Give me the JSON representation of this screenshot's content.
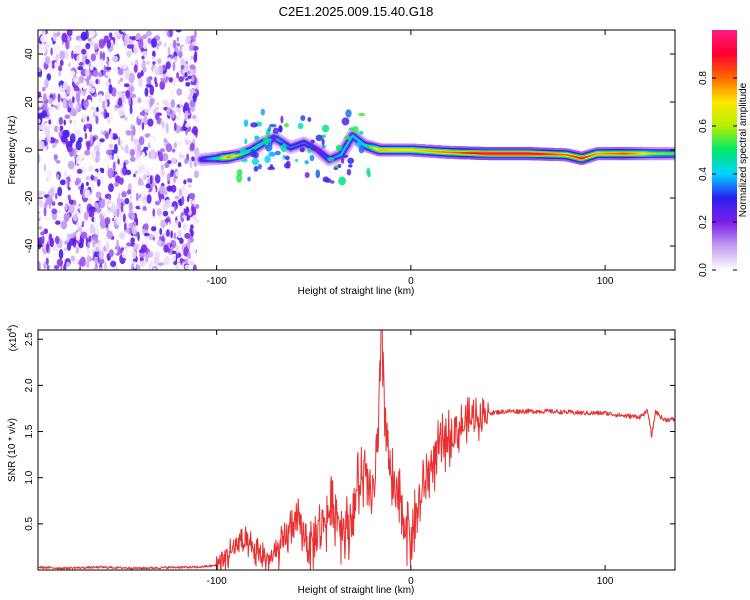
{
  "title": "C2E1.2025.009.15.40.G18",
  "chart_data": [
    {
      "type": "heatmap",
      "xlabel": "Height of straight line (km)",
      "ylabel": "Frequency (Hz)",
      "xlim": [
        -192,
        136
      ],
      "ylim": [
        -50,
        50
      ],
      "xticks": [
        -100,
        0,
        100
      ],
      "yticks": [
        -40,
        -20,
        0,
        20,
        40
      ],
      "grid": false,
      "noise_region_x": [
        -192,
        -110
      ],
      "ridge": [
        {
          "x": -108,
          "f": -4,
          "amp": 0.3
        },
        {
          "x": -100,
          "f": -3.5,
          "amp": 0.45
        },
        {
          "x": -94,
          "f": -3,
          "amp": 0.8
        },
        {
          "x": -88,
          "f": -2,
          "amp": 0.55
        },
        {
          "x": -82,
          "f": 0,
          "amp": 0.5
        },
        {
          "x": -76,
          "f": 3,
          "amp": 0.45
        },
        {
          "x": -70,
          "f": 5,
          "amp": 0.4
        },
        {
          "x": -62,
          "f": 1,
          "amp": 0.35
        },
        {
          "x": -55,
          "f": 3,
          "amp": 0.35
        },
        {
          "x": -48,
          "f": 0,
          "amp": 0.3
        },
        {
          "x": -42,
          "f": -4,
          "amp": 0.35
        },
        {
          "x": -36,
          "f": -2,
          "amp": 0.4
        },
        {
          "x": -30,
          "f": 6,
          "amp": 0.4
        },
        {
          "x": -24,
          "f": 2,
          "amp": 0.45
        },
        {
          "x": -16,
          "f": 0,
          "amp": 0.75
        },
        {
          "x": -8,
          "f": 0,
          "amp": 0.7
        },
        {
          "x": 0,
          "f": 0,
          "amp": 0.7
        },
        {
          "x": 20,
          "f": -1,
          "amp": 0.8
        },
        {
          "x": 40,
          "f": -1.5,
          "amp": 0.95
        },
        {
          "x": 60,
          "f": -1.5,
          "amp": 0.95
        },
        {
          "x": 80,
          "f": -2,
          "amp": 0.8
        },
        {
          "x": 88,
          "f": -3.5,
          "amp": 0.9
        },
        {
          "x": 96,
          "f": -1.5,
          "amp": 0.75
        },
        {
          "x": 110,
          "f": -1.5,
          "amp": 0.85
        },
        {
          "x": 125,
          "f": -1.5,
          "amp": 0.6
        },
        {
          "x": 136,
          "f": -1.5,
          "amp": 0.55
        }
      ],
      "colorbar": {
        "label": "Normalized spectral amplitude",
        "range": [
          0,
          1
        ],
        "ticks": [
          "0.0",
          "0.2",
          "0.4",
          "0.6",
          "0.8"
        ],
        "colors": [
          "#ffffff",
          "#c49cf2",
          "#7a1fe8",
          "#2a1ff0",
          "#00d4ff",
          "#00e86a",
          "#b6f000",
          "#ffe600",
          "#ff6a00",
          "#ff0030",
          "#ff1a80"
        ]
      }
    },
    {
      "type": "line",
      "xlabel": "Height of straight line (km)",
      "ylabel": "SNR (10 * v/v)",
      "ylabel_scale": "(x10",
      "ylabel_scale_exp": "4",
      "xlim": [
        -192,
        136
      ],
      "ylim": [
        0,
        2.6
      ],
      "xticks": [
        -100,
        0,
        100
      ],
      "yticks": [
        "0.5",
        "1.0",
        "1.5",
        "2.0",
        "2.5"
      ],
      "grid": false,
      "color": "#e83030",
      "series": [
        {
          "x": [
            -192,
            -180,
            -160,
            -140,
            -120,
            -110,
            -100,
            -96,
            -92,
            -88,
            -84,
            -80,
            -76,
            -72,
            -68,
            -64,
            -60,
            -56,
            -52,
            -48,
            -44,
            -40,
            -36,
            -32,
            -28,
            -24,
            -20,
            -17,
            -15,
            -13,
            -10,
            -6,
            -2,
            0,
            4,
            8,
            12,
            16,
            20,
            24,
            28,
            32,
            36,
            40,
            50,
            60,
            70,
            80,
            90,
            100,
            110,
            118,
            122,
            124,
            126,
            130,
            136
          ],
          "y": [
            0.03,
            0.02,
            0.03,
            0.02,
            0.03,
            0.03,
            0.05,
            0.12,
            0.22,
            0.3,
            0.25,
            0.18,
            0.15,
            0.12,
            0.2,
            0.35,
            0.55,
            0.45,
            0.25,
            0.4,
            0.55,
            0.7,
            0.5,
            0.45,
            0.85,
            1.0,
            0.75,
            1.3,
            2.6,
            1.6,
            0.9,
            0.7,
            0.5,
            0.35,
            0.7,
            1.0,
            1.2,
            1.35,
            1.45,
            1.52,
            1.58,
            1.65,
            1.68,
            1.7,
            1.72,
            1.72,
            1.72,
            1.71,
            1.7,
            1.7,
            1.67,
            1.66,
            1.72,
            1.45,
            1.72,
            1.63,
            1.63
          ]
        }
      ]
    }
  ]
}
